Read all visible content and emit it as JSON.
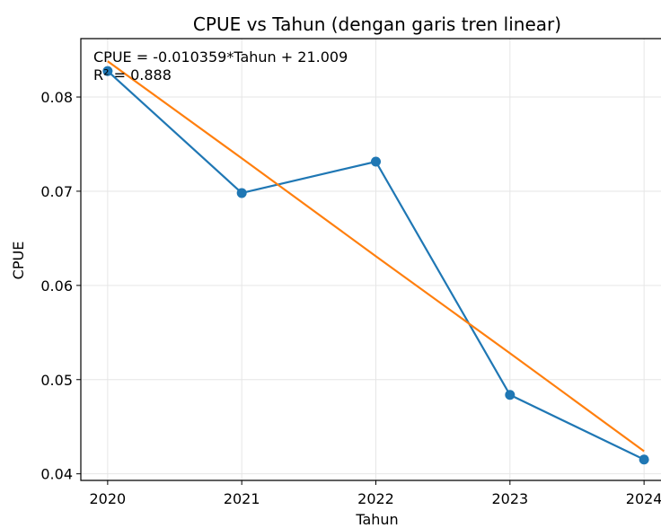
{
  "chart_data": {
    "type": "line",
    "title": "CPUE vs Tahun (dengan garis tren linear)",
    "xlabel": "Tahun",
    "ylabel": "CPUE",
    "annotations": [
      "CPUE = -0.010359*Tahun + 21.009",
      "R² = 0.888"
    ],
    "x": [
      2020,
      2021,
      2022,
      2023,
      2024
    ],
    "series": [
      {
        "name": "CPUE",
        "color": "#1f77b4",
        "marker": true,
        "values": [
          0.08276,
          0.06981,
          0.07314,
          0.04838,
          0.04152
        ]
      },
      {
        "name": "Tren linear",
        "color": "#ff7f0e",
        "marker": false,
        "values": [
          0.0838,
          0.0735,
          0.0631,
          0.0528,
          0.0424
        ]
      }
    ],
    "xlim": [
      2019.8,
      2024.2
    ],
    "ylim": [
      0.0393,
      0.0862
    ],
    "xticks": [
      2020,
      2021,
      2022,
      2023,
      2024
    ],
    "yticks": [
      0.04,
      0.05,
      0.06,
      0.07,
      0.08
    ],
    "grid": true
  }
}
